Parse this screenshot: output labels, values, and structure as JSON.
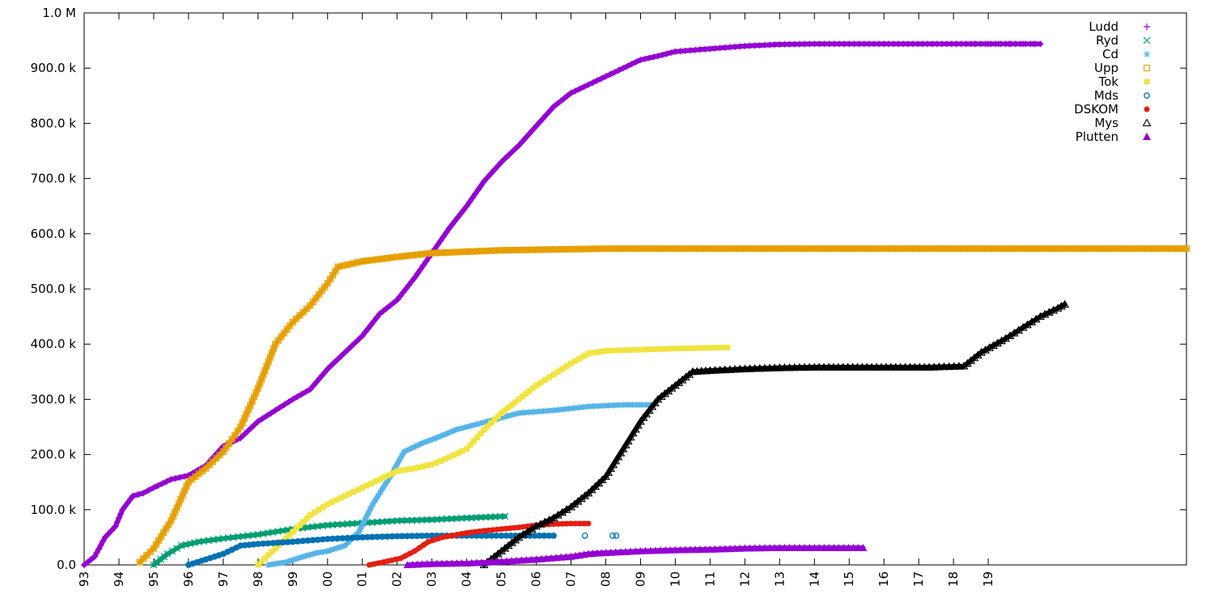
{
  "chart_data": {
    "type": "scatter",
    "title": "",
    "xlabel": "",
    "ylabel": "",
    "grid": false,
    "legend_position": "top-right",
    "xlim": [
      1993.0,
      2024.7
    ],
    "ylim": [
      0,
      1000000
    ],
    "y_ticks": [
      {
        "value": 0,
        "label": "0.0"
      },
      {
        "value": 100000,
        "label": "100.0 k"
      },
      {
        "value": 200000,
        "label": "200.0 k"
      },
      {
        "value": 300000,
        "label": "300.0 k"
      },
      {
        "value": 400000,
        "label": "400.0 k"
      },
      {
        "value": 500000,
        "label": "500.0 k"
      },
      {
        "value": 600000,
        "label": "600.0 k"
      },
      {
        "value": 700000,
        "label": "700.0 k"
      },
      {
        "value": 800000,
        "label": "800.0 k"
      },
      {
        "value": 900000,
        "label": "900.0 k"
      },
      {
        "value": 1000000,
        "label": "1.0 M"
      }
    ],
    "x_ticks": [
      {
        "value": 1993,
        "label": "93"
      },
      {
        "value": 1994,
        "label": "94"
      },
      {
        "value": 1995,
        "label": "95"
      },
      {
        "value": 1996,
        "label": "96"
      },
      {
        "value": 1997,
        "label": "97"
      },
      {
        "value": 1998,
        "label": "98"
      },
      {
        "value": 1999,
        "label": "99"
      },
      {
        "value": 2000,
        "label": "00"
      },
      {
        "value": 2001,
        "label": "01"
      },
      {
        "value": 2002,
        "label": "02"
      },
      {
        "value": 2003,
        "label": "03"
      },
      {
        "value": 2004,
        "label": "04"
      },
      {
        "value": 2005,
        "label": "05"
      },
      {
        "value": 2006,
        "label": "06"
      },
      {
        "value": 2007,
        "label": "07"
      },
      {
        "value": 2008,
        "label": "08"
      },
      {
        "value": 2009,
        "label": "09"
      },
      {
        "value": 2010,
        "label": "10"
      },
      {
        "value": 2011,
        "label": "11"
      },
      {
        "value": 2012,
        "label": "12"
      },
      {
        "value": 2013,
        "label": "13"
      },
      {
        "value": 2014,
        "label": "14"
      },
      {
        "value": 2015,
        "label": "15"
      },
      {
        "value": 2016,
        "label": "16"
      },
      {
        "value": 2017,
        "label": "17"
      },
      {
        "value": 2018,
        "label": "18"
      },
      {
        "value": 2019,
        "label": "19"
      }
    ],
    "series": [
      {
        "name": "Ludd",
        "color": "#9400d3",
        "marker": "plus",
        "points": [
          [
            1993.0,
            0
          ],
          [
            1993.3,
            15000
          ],
          [
            1993.6,
            50000
          ],
          [
            1993.9,
            70000
          ],
          [
            1994.1,
            100000
          ],
          [
            1994.4,
            125000
          ],
          [
            1994.7,
            130000
          ],
          [
            1995.0,
            140000
          ],
          [
            1995.5,
            155000
          ],
          [
            1996.0,
            162000
          ],
          [
            1996.5,
            180000
          ],
          [
            1997.0,
            215000
          ],
          [
            1997.5,
            230000
          ],
          [
            1998.0,
            260000
          ],
          [
            1998.5,
            280000
          ],
          [
            1999.0,
            300000
          ],
          [
            1999.5,
            318000
          ],
          [
            2000.0,
            355000
          ],
          [
            2000.5,
            385000
          ],
          [
            2001.0,
            415000
          ],
          [
            2001.5,
            455000
          ],
          [
            2002.0,
            480000
          ],
          [
            2002.5,
            520000
          ],
          [
            2003.0,
            565000
          ],
          [
            2003.5,
            610000
          ],
          [
            2004.0,
            650000
          ],
          [
            2004.5,
            695000
          ],
          [
            2005.0,
            730000
          ],
          [
            2005.5,
            760000
          ],
          [
            2006.0,
            795000
          ],
          [
            2006.5,
            830000
          ],
          [
            2007.0,
            855000
          ],
          [
            2007.5,
            870000
          ],
          [
            2008.0,
            885000
          ],
          [
            2008.5,
            900000
          ],
          [
            2009.0,
            915000
          ],
          [
            2009.5,
            922000
          ],
          [
            2010.0,
            930000
          ],
          [
            2011.0,
            935000
          ],
          [
            2012.0,
            940000
          ],
          [
            2013.0,
            943000
          ],
          [
            2014.0,
            944000
          ],
          [
            2016.0,
            944000
          ],
          [
            2018.5,
            944000
          ],
          [
            2020.5,
            944000
          ]
        ],
        "sparse_tail": [
          2018.6,
          2019.0,
          2019.3,
          2019.6,
          2020.0,
          2020.3
        ]
      },
      {
        "name": "Ryd",
        "color": "#009e73",
        "marker": "cross",
        "points": [
          [
            1995.0,
            0
          ],
          [
            1995.4,
            20000
          ],
          [
            1995.8,
            35000
          ],
          [
            1996.3,
            42000
          ],
          [
            1997.0,
            48000
          ],
          [
            1998.0,
            55000
          ],
          [
            1999.0,
            65000
          ],
          [
            2000.0,
            72000
          ],
          [
            2001.0,
            76000
          ],
          [
            2002.0,
            80000
          ],
          [
            2003.0,
            82000
          ],
          [
            2004.0,
            85000
          ],
          [
            2005.1,
            88000
          ]
        ]
      },
      {
        "name": "Cd",
        "color": "#56b4e9",
        "marker": "star",
        "points": [
          [
            1998.3,
            0
          ],
          [
            1998.8,
            5000
          ],
          [
            1999.3,
            15000
          ],
          [
            1999.7,
            22000
          ],
          [
            2000.0,
            25000
          ],
          [
            2000.5,
            35000
          ],
          [
            2000.9,
            60000
          ],
          [
            2001.3,
            110000
          ],
          [
            2001.8,
            160000
          ],
          [
            2002.2,
            205000
          ],
          [
            2002.7,
            220000
          ],
          [
            2003.2,
            232000
          ],
          [
            2003.7,
            245000
          ],
          [
            2004.3,
            255000
          ],
          [
            2004.9,
            265000
          ],
          [
            2005.5,
            275000
          ],
          [
            2006.5,
            280000
          ],
          [
            2007.5,
            287000
          ],
          [
            2008.5,
            290000
          ],
          [
            2009.3,
            290000
          ]
        ]
      },
      {
        "name": "Upp",
        "color": "#e69f00",
        "marker": "square",
        "points": [
          [
            1994.6,
            5000
          ],
          [
            1995.0,
            30000
          ],
          [
            1995.5,
            80000
          ],
          [
            1996.0,
            150000
          ],
          [
            1996.5,
            175000
          ],
          [
            1997.0,
            205000
          ],
          [
            1997.5,
            250000
          ],
          [
            1998.0,
            320000
          ],
          [
            1998.5,
            400000
          ],
          [
            1999.0,
            440000
          ],
          [
            1999.5,
            470000
          ],
          [
            2000.0,
            510000
          ],
          [
            2000.3,
            540000
          ],
          [
            2001.0,
            550000
          ],
          [
            2002.0,
            558000
          ],
          [
            2003.0,
            565000
          ],
          [
            2005.0,
            570000
          ],
          [
            2008.0,
            573000
          ],
          [
            2011.0,
            573000
          ],
          [
            2014.0,
            573000
          ],
          [
            2019.0,
            573000
          ],
          [
            2024.7,
            573000
          ]
        ]
      },
      {
        "name": "Tok",
        "color": "#f0e442",
        "marker": "filled-square",
        "points": [
          [
            1998.0,
            0
          ],
          [
            1998.5,
            30000
          ],
          [
            1999.0,
            60000
          ],
          [
            1999.5,
            90000
          ],
          [
            2000.0,
            110000
          ],
          [
            2000.5,
            125000
          ],
          [
            2001.0,
            140000
          ],
          [
            2001.5,
            155000
          ],
          [
            2002.0,
            170000
          ],
          [
            2002.5,
            175000
          ],
          [
            2003.0,
            182000
          ],
          [
            2003.5,
            195000
          ],
          [
            2004.0,
            210000
          ],
          [
            2004.5,
            245000
          ],
          [
            2005.0,
            275000
          ],
          [
            2005.5,
            300000
          ],
          [
            2006.0,
            325000
          ],
          [
            2006.5,
            345000
          ],
          [
            2007.0,
            365000
          ],
          [
            2007.5,
            383000
          ],
          [
            2008.0,
            388000
          ],
          [
            2009.0,
            390000
          ],
          [
            2010.0,
            392000
          ],
          [
            2011.5,
            394000
          ]
        ]
      },
      {
        "name": "Mds",
        "color": "#0072b2",
        "marker": "circle",
        "points": [
          [
            1996.0,
            0
          ],
          [
            1996.5,
            10000
          ],
          [
            1997.0,
            20000
          ],
          [
            1997.5,
            35000
          ],
          [
            1998.0,
            38000
          ],
          [
            1999.0,
            42000
          ],
          [
            2000.0,
            47000
          ],
          [
            2001.0,
            50000
          ],
          [
            2002.0,
            52000
          ],
          [
            2003.0,
            53000
          ],
          [
            2004.0,
            53000
          ],
          [
            2005.0,
            53000
          ],
          [
            2006.5,
            53000
          ]
        ],
        "outliers": [
          [
            2007.4,
            53000
          ],
          [
            2008.2,
            53000
          ],
          [
            2008.3,
            53000
          ]
        ]
      },
      {
        "name": "DSKOM",
        "color": "#e51e10",
        "marker": "filled-circle",
        "points": [
          [
            2001.2,
            0
          ],
          [
            2001.6,
            5000
          ],
          [
            2002.1,
            12000
          ],
          [
            2002.5,
            25000
          ],
          [
            2002.9,
            42000
          ],
          [
            2003.3,
            50000
          ],
          [
            2004.0,
            58000
          ],
          [
            2004.5,
            62000
          ],
          [
            2005.0,
            65000
          ],
          [
            2005.5,
            68000
          ],
          [
            2006.0,
            72000
          ],
          [
            2006.5,
            74000
          ],
          [
            2007.0,
            75000
          ],
          [
            2007.5,
            75000
          ]
        ]
      },
      {
        "name": "Mys",
        "color": "#000000",
        "marker": "triangle",
        "points": [
          [
            2004.5,
            0
          ],
          [
            2005.0,
            25000
          ],
          [
            2005.5,
            50000
          ],
          [
            2006.0,
            70000
          ],
          [
            2006.5,
            85000
          ],
          [
            2007.0,
            105000
          ],
          [
            2007.5,
            130000
          ],
          [
            2008.0,
            160000
          ],
          [
            2008.5,
            210000
          ],
          [
            2009.0,
            260000
          ],
          [
            2009.5,
            300000
          ],
          [
            2010.0,
            325000
          ],
          [
            2010.5,
            350000
          ],
          [
            2011.0,
            352000
          ],
          [
            2012.0,
            355000
          ],
          [
            2013.0,
            357000
          ],
          [
            2014.0,
            358000
          ],
          [
            2017.3,
            358000
          ],
          [
            2018.3,
            360000
          ],
          [
            2018.8,
            385000
          ],
          [
            2019.5,
            410000
          ],
          [
            2020.0,
            430000
          ],
          [
            2020.5,
            450000
          ],
          [
            2021.0,
            465000
          ],
          [
            2021.2,
            472000
          ]
        ]
      },
      {
        "name": "Plutten",
        "color": "#9400d3",
        "marker": "filled-triangle",
        "points": [
          [
            2002.3,
            0
          ],
          [
            2003.0,
            2000
          ],
          [
            2004.0,
            3000
          ],
          [
            2005.0,
            6000
          ],
          [
            2006.0,
            10000
          ],
          [
            2007.0,
            15000
          ],
          [
            2007.5,
            20000
          ],
          [
            2008.0,
            22000
          ],
          [
            2009.0,
            25000
          ],
          [
            2010.0,
            27000
          ],
          [
            2011.0,
            28000
          ],
          [
            2012.0,
            30000
          ],
          [
            2013.0,
            31000
          ],
          [
            2014.0,
            31000
          ],
          [
            2015.4,
            31000
          ]
        ]
      }
    ]
  }
}
